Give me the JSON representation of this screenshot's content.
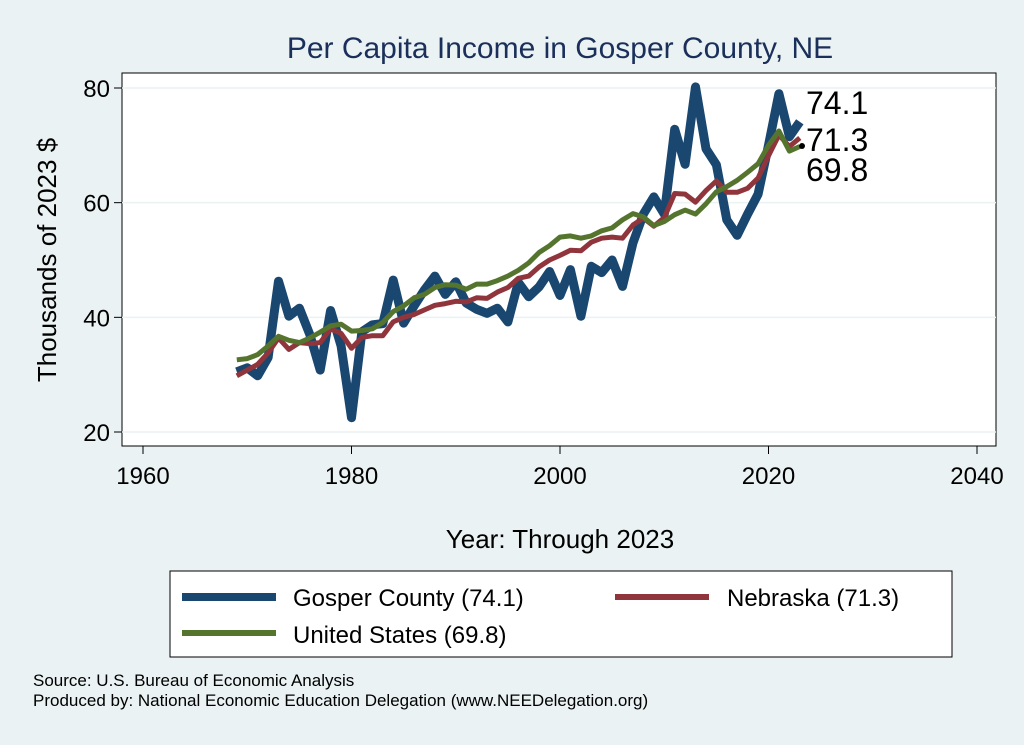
{
  "chart_data": {
    "type": "line",
    "title": "Per Capita Income in Gosper County, NE",
    "xlabel": "Year: Through 2023",
    "ylabel": "Thousands of 2023 $",
    "xlim": [
      1960,
      2040
    ],
    "ylim": [
      20,
      80
    ],
    "xticks": [
      "1960",
      "1980",
      "2000",
      "2020",
      "2040"
    ],
    "yticks": [
      "20",
      "40",
      "60",
      "80"
    ],
    "x": [
      1969,
      1970,
      1971,
      1972,
      1973,
      1974,
      1975,
      1976,
      1977,
      1978,
      1979,
      1980,
      1981,
      1982,
      1983,
      1984,
      1985,
      1986,
      1987,
      1988,
      1989,
      1990,
      1991,
      1992,
      1993,
      1994,
      1995,
      1996,
      1997,
      1998,
      1999,
      2000,
      2001,
      2002,
      2003,
      2004,
      2005,
      2006,
      2007,
      2008,
      2009,
      2010,
      2011,
      2012,
      2013,
      2014,
      2015,
      2016,
      2017,
      2018,
      2019,
      2020,
      2021,
      2022,
      2023
    ],
    "series": [
      {
        "name": "Gosper County",
        "color": "#1a476f",
        "end_label": "74.1",
        "values": [
          30.5,
          31.2,
          29.8,
          33.0,
          46.3,
          40.2,
          41.6,
          37.0,
          30.8,
          41.2,
          35.0,
          22.5,
          37.5,
          38.7,
          38.9,
          46.5,
          39.0,
          42.0,
          44.8,
          47.2,
          44.0,
          46.2,
          42.5,
          41.4,
          40.7,
          41.6,
          39.2,
          46.1,
          43.6,
          45.3,
          48.0,
          43.8,
          48.3,
          40.2,
          48.9,
          47.8,
          50.0,
          45.4,
          53.0,
          58.0,
          61.0,
          58.0,
          72.8,
          66.7,
          80.2,
          69.4,
          66.6,
          57.0,
          54.3,
          58.0,
          61.5,
          70.0,
          79.0,
          71.5,
          74.1
        ]
      },
      {
        "name": "Nebraska",
        "color": "#90353b",
        "end_label": "71.3",
        "values": [
          29.8,
          30.8,
          31.8,
          33.8,
          36.4,
          34.4,
          35.6,
          35.4,
          35.6,
          38.0,
          37.2,
          34.6,
          36.5,
          36.8,
          36.8,
          39.2,
          40.0,
          40.5,
          41.3,
          42.1,
          42.4,
          42.8,
          42.7,
          43.4,
          43.3,
          44.4,
          45.2,
          46.8,
          47.2,
          48.8,
          50.0,
          50.8,
          51.7,
          51.6,
          53.1,
          53.8,
          54.0,
          53.8,
          56.1,
          57.3,
          55.9,
          57.4,
          61.6,
          61.5,
          60.1,
          62.1,
          63.8,
          61.8,
          61.8,
          62.5,
          64.3,
          68.2,
          71.8,
          69.8,
          71.3
        ]
      },
      {
        "name": "United States",
        "color": "#55752f",
        "end_label": "69.8",
        "values": [
          32.6,
          32.8,
          33.5,
          35.0,
          36.7,
          36.0,
          35.6,
          36.4,
          37.4,
          38.5,
          38.8,
          37.6,
          37.7,
          38.0,
          39.1,
          41.0,
          42.0,
          43.4,
          44.0,
          45.2,
          45.7,
          45.6,
          44.9,
          45.8,
          45.8,
          46.4,
          47.2,
          48.2,
          49.5,
          51.3,
          52.5,
          54.0,
          54.2,
          53.8,
          54.2,
          55.1,
          55.6,
          57.0,
          58.1,
          57.5,
          56.0,
          56.7,
          57.9,
          58.7,
          58.0,
          59.8,
          61.9,
          62.8,
          63.9,
          65.3,
          66.8,
          70.0,
          72.5,
          69.0,
          69.8
        ]
      }
    ],
    "legend": [
      {
        "label": "Gosper County (74.1)",
        "color": "#1a476f"
      },
      {
        "label": "Nebraska (71.3)",
        "color": "#90353b"
      },
      {
        "label": "United States (69.8)",
        "color": "#55752f"
      }
    ]
  },
  "footer": {
    "source": "Source: U.S. Bureau of Economic Analysis",
    "produced_by": "Produced by: National Economic Education Delegation (www.NEEDelegation.org)"
  }
}
